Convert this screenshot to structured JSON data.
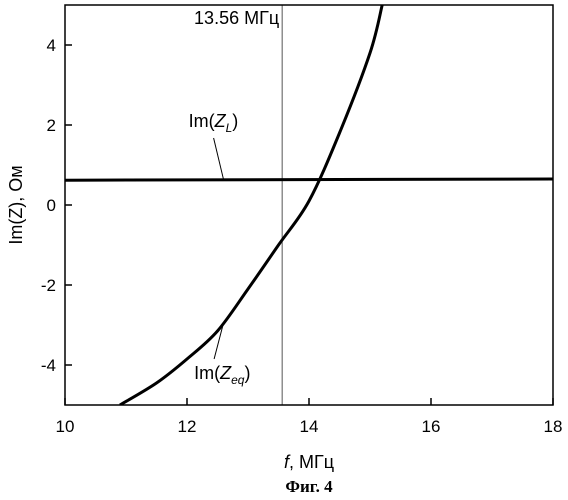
{
  "chart_data": {
    "type": "line",
    "title": "",
    "xlabel_italic": "f",
    "xlabel_rest": ", МГц",
    "ylabel": "Im(Z), Ом",
    "xlim": [
      10,
      18
    ],
    "ylim": [
      -5,
      5
    ],
    "xticks": [
      10,
      12,
      14,
      16,
      18
    ],
    "yticks": [
      -4,
      -2,
      0,
      2,
      4
    ],
    "grid": false,
    "vline": {
      "x": 13.56,
      "label": "13.56 МГц"
    },
    "series": [
      {
        "key": "ZL",
        "label_prefix": "Im(",
        "label_var": "Z",
        "label_sub": "L",
        "label_suffix": ")",
        "x": [
          10,
          18
        ],
        "y": [
          0.62,
          0.65
        ]
      },
      {
        "key": "Zeq",
        "label_prefix": "Im(",
        "label_var": "Z",
        "label_sub": "eq",
        "label_suffix": ")",
        "x": [
          10.9,
          11.5,
          12.0,
          12.5,
          13.0,
          13.5,
          14.0,
          14.5,
          15.0,
          15.2
        ],
        "y": [
          -5.0,
          -4.45,
          -3.85,
          -3.15,
          -2.1,
          -1.0,
          0.1,
          1.8,
          3.8,
          5.0
        ]
      }
    ],
    "annotations": [
      {
        "series": "ZL",
        "at_x": 12.6,
        "label_x": 12.6,
        "label_y": 1.75
      },
      {
        "series": "Zeq",
        "at_x": 12.6,
        "label_x": 13.1,
        "label_y": -4.2
      }
    ]
  },
  "caption": "Фиг. 4"
}
